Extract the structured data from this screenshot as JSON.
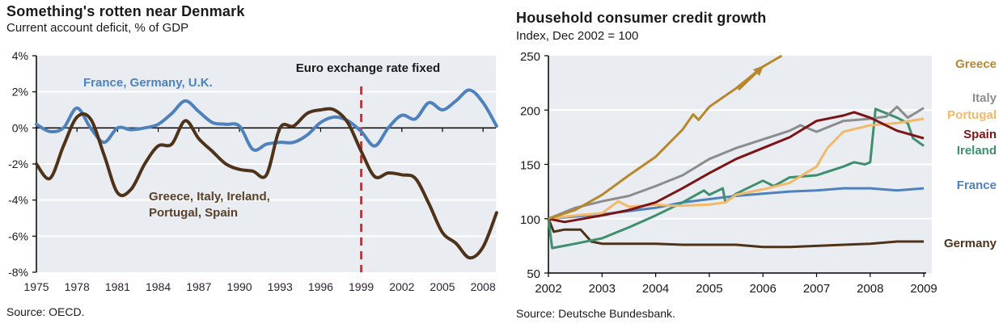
{
  "chart_data": [
    {
      "type": "line",
      "title": "Something's rotten near Denmark",
      "subtitle": "Current account deficit, % of GDP",
      "source": "Source: OECD.",
      "xlabel": "",
      "ylabel": "",
      "xlim": [
        1975,
        2009.9
      ],
      "ylim": [
        -8,
        4
      ],
      "x_ticks": [
        1975,
        1978,
        1981,
        1984,
        1987,
        1990,
        1993,
        1996,
        1999,
        2002,
        2005,
        2008
      ],
      "x_tick_labels": [
        "1975",
        "1978",
        "1981",
        "1984",
        "1987",
        "1990",
        "1993",
        "1996",
        "1999",
        "2002",
        "2005",
        "2008"
      ],
      "y_ticks": [
        4,
        2,
        0,
        -2,
        -4,
        -6,
        -8
      ],
      "y_tick_labels": [
        "4%",
        "2%",
        "0%",
        "-2%",
        "-4%",
        "-6%",
        "-8%"
      ],
      "grid": true,
      "annotations": [
        {
          "text": "Euro exchange rate fixed",
          "type": "vertical-line",
          "x": 1999,
          "color": "#e8262a"
        }
      ],
      "series": [
        {
          "name": "France, Germany, U.K.",
          "label": "France, Germany, U.K.",
          "color": "#4f81bd",
          "x": [
            1975,
            1976,
            1977,
            1978,
            1979,
            1980,
            1981,
            1982,
            1983,
            1984,
            1985,
            1986,
            1987,
            1988,
            1989,
            1990,
            1991,
            1992,
            1993,
            1994,
            1995,
            1996,
            1997,
            1998,
            1999,
            2000,
            2001,
            2002,
            2003,
            2004,
            2005,
            2006,
            2007,
            2008,
            2009
          ],
          "values": [
            0.2,
            -0.2,
            0.0,
            1.1,
            0.0,
            -0.8,
            0.0,
            -0.1,
            0.0,
            0.2,
            0.8,
            1.5,
            0.9,
            0.3,
            0.2,
            0.1,
            -1.2,
            -0.9,
            -0.8,
            -0.8,
            -0.4,
            0.3,
            0.6,
            0.4,
            -0.2,
            -1.0,
            0.0,
            0.7,
            0.5,
            1.4,
            1.0,
            1.5,
            2.1,
            1.4,
            0.1
          ]
        },
        {
          "name": "Greece, Italy, Ireland, Portugal, Spain",
          "label_lines": [
            "Greece, Italy, Ireland,",
            "Portugal, Spain"
          ],
          "color": "#4e3219",
          "x": [
            1975,
            1976,
            1977,
            1978,
            1979,
            1980,
            1981,
            1982,
            1983,
            1984,
            1985,
            1986,
            1987,
            1988,
            1989,
            1990,
            1991,
            1992,
            1993,
            1994,
            1995,
            1996,
            1997,
            1998,
            1999,
            2000,
            2001,
            2002,
            2003,
            2004,
            2005,
            2006,
            2007,
            2008,
            2009
          ],
          "values": [
            -2.0,
            -2.8,
            -1.0,
            0.6,
            0.5,
            -1.5,
            -3.6,
            -3.4,
            -2.0,
            -1.0,
            -0.9,
            0.4,
            -0.6,
            -1.3,
            -2.0,
            -2.3,
            -2.4,
            -2.6,
            0.0,
            0.1,
            0.8,
            1.0,
            1.0,
            0.3,
            -1.3,
            -2.7,
            -2.5,
            -2.6,
            -2.8,
            -4.2,
            -5.8,
            -6.4,
            -7.2,
            -6.6,
            -4.7
          ]
        }
      ]
    },
    {
      "type": "line",
      "title": "Household consumer credit growth",
      "subtitle": "Index, Dec 2002 = 100",
      "source": "Source: Deutsche Bundesbank.",
      "xlabel": "",
      "ylabel": "",
      "xlim": [
        2002,
        2009.15
      ],
      "ylim": [
        50,
        250
      ],
      "x_ticks": [
        2002,
        2003,
        2004,
        2005,
        2006,
        2007,
        2008,
        2009
      ],
      "x_tick_labels": [
        "2002",
        "2003",
        "2004",
        "2005",
        "2006",
        "2007",
        "2008",
        "2009"
      ],
      "y_ticks": [
        250,
        200,
        150,
        100,
        50
      ],
      "y_tick_labels": [
        "250",
        "200",
        "150",
        "100",
        "50"
      ],
      "grid": true,
      "legend": "right",
      "annotations": [
        {
          "type": "arrow",
          "meaning": "Greece continues above chart",
          "color": "#b8862b"
        }
      ],
      "series": [
        {
          "name": "Greece",
          "color": "#b8862b",
          "x": [
            2002,
            2002.5,
            2003,
            2003.5,
            2004,
            2004.5,
            2004.7,
            2004.8,
            2005,
            2005.5,
            2006,
            2006.35
          ],
          "values": [
            100,
            108,
            122,
            140,
            157,
            182,
            196,
            191,
            203,
            220,
            240,
            250
          ]
        },
        {
          "name": "Italy",
          "color": "#8c8c8c",
          "x": [
            2002,
            2002.3,
            2002.5,
            2003,
            2003.5,
            2004,
            2004.5,
            2005,
            2005.5,
            2006,
            2006.5,
            2006.7,
            2007,
            2007.5,
            2008,
            2008.3,
            2008.5,
            2008.7,
            2009
          ],
          "values": [
            100,
            106,
            110,
            116,
            121,
            130,
            140,
            155,
            165,
            173,
            181,
            186,
            180,
            190,
            192,
            194,
            203,
            193,
            202
          ]
        },
        {
          "name": "Portugal",
          "color": "#f3b868",
          "x": [
            2002,
            2002.5,
            2003,
            2003.3,
            2003.5,
            2004,
            2004.3,
            2004.5,
            2005,
            2005.3,
            2005.5,
            2006,
            2006.5,
            2007,
            2007.2,
            2007.5,
            2008,
            2008.5,
            2009
          ],
          "values": [
            100,
            103,
            105,
            116,
            111,
            113,
            112,
            112,
            113,
            115,
            122,
            127,
            133,
            148,
            165,
            180,
            186,
            188,
            192
          ]
        },
        {
          "name": "Spain",
          "color": "#7b1416",
          "x": [
            2002,
            2002.3,
            2003,
            2003.5,
            2004,
            2004.5,
            2005,
            2005.5,
            2006,
            2006.5,
            2007,
            2007.5,
            2007.7,
            2008,
            2008.5,
            2009
          ],
          "values": [
            100,
            97,
            103,
            108,
            115,
            128,
            142,
            155,
            165,
            175,
            190,
            195,
            198,
            193,
            181,
            174
          ]
        },
        {
          "name": "Ireland",
          "color": "#3f8f6f",
          "x": [
            2002,
            2002.07,
            2002.5,
            2003,
            2003.5,
            2004,
            2004.5,
            2004.9,
            2005,
            2005.25,
            2005.3,
            2005.5,
            2006,
            2006.2,
            2006.5,
            2007,
            2007.5,
            2007.7,
            2007.9,
            2008,
            2008.1,
            2008.5,
            2008.7,
            2008.8,
            2009
          ],
          "values": [
            100,
            73,
            77,
            82,
            92,
            103,
            115,
            126,
            122,
            128,
            115,
            123,
            135,
            130,
            138,
            140,
            148,
            152,
            150,
            152,
            201,
            193,
            188,
            174,
            167
          ]
        },
        {
          "name": "France",
          "color": "#4f81bd",
          "x": [
            2002,
            2003,
            2003.5,
            2004,
            2004.5,
            2005,
            2005.5,
            2006,
            2006.5,
            2007,
            2007.5,
            2008,
            2008.5,
            2009
          ],
          "values": [
            100,
            104,
            107,
            110,
            115,
            118,
            121,
            123,
            125,
            126,
            128,
            128,
            126,
            128
          ]
        },
        {
          "name": "Germany",
          "color": "#4e3219",
          "x": [
            2002,
            2002.1,
            2002.3,
            2002.6,
            2002.8,
            2003,
            2003.5,
            2004,
            2004.5,
            2005,
            2005.5,
            2006,
            2006.5,
            2007,
            2007.5,
            2008,
            2008.5,
            2009
          ],
          "values": [
            100,
            88,
            90,
            90,
            79,
            77,
            77,
            77,
            76,
            76,
            76,
            74,
            74,
            75,
            76,
            77,
            79,
            79
          ]
        }
      ]
    }
  ]
}
